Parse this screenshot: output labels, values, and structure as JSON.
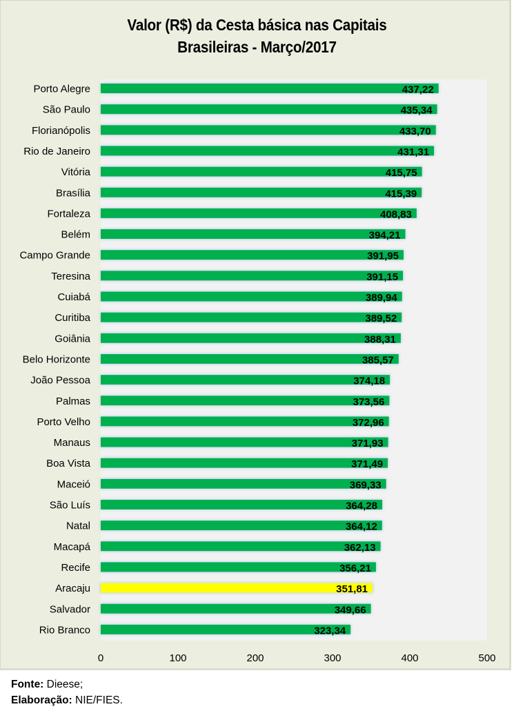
{
  "chart_data": {
    "type": "bar",
    "orientation": "horizontal",
    "title_line1": "Valor (R$) da Cesta básica nas Capitais",
    "title_line2": "Brasileiras -  Março/2017",
    "xlabel": "",
    "ylabel": "",
    "xlim": [
      0,
      500
    ],
    "xticks": [
      "0",
      "100",
      "200",
      "300",
      "400",
      "500"
    ],
    "grid": false,
    "legend": "none",
    "categories": [
      "Porto Alegre",
      "São Paulo",
      "Florianópolis",
      "Rio de Janeiro",
      "Vitória",
      "Brasília",
      "Fortaleza",
      "Belém",
      "Campo Grande",
      "Teresina",
      "Cuiabá",
      "Curitiba",
      "Goiânia",
      "Belo Horizonte",
      "João Pessoa",
      "Palmas",
      "Porto Velho",
      "Manaus",
      "Boa Vista",
      "Maceió",
      "São Luís",
      "Natal",
      "Macapá",
      "Recife",
      "Aracaju",
      "Salvador",
      "Rio Branco"
    ],
    "values": [
      437.22,
      435.34,
      433.7,
      431.31,
      415.75,
      415.39,
      408.83,
      394.21,
      391.95,
      391.15,
      389.94,
      389.52,
      388.31,
      385.57,
      374.18,
      373.56,
      372.96,
      371.93,
      371.49,
      369.33,
      364.28,
      364.12,
      362.13,
      356.21,
      351.81,
      349.66,
      323.34
    ],
    "labels": [
      "437,22",
      "435,34",
      "433,70",
      "431,31",
      "415,75",
      "415,39",
      "408,83",
      "394,21",
      "391,95",
      "391,15",
      "389,94",
      "389,52",
      "388,31",
      "385,57",
      "374,18",
      "373,56",
      "372,96",
      "371,93",
      "371,49",
      "369,33",
      "364,28",
      "364,12",
      "362,13",
      "356,21",
      "351,81",
      "349,66",
      "323,34"
    ],
    "highlight": "Aracaju",
    "colors": {
      "bar": "#00b050",
      "highlight": "#ffff00",
      "glow": "#c5d9f1",
      "plot_bg": "#f2f2f2",
      "frame_bg": "#eceee0"
    }
  },
  "footer": {
    "fonte_label": "Fonte:",
    "fonte_value": " Dieese;",
    "elaboracao_label": "Elaboração:",
    "elaboracao_value": " NIE/FIES."
  }
}
